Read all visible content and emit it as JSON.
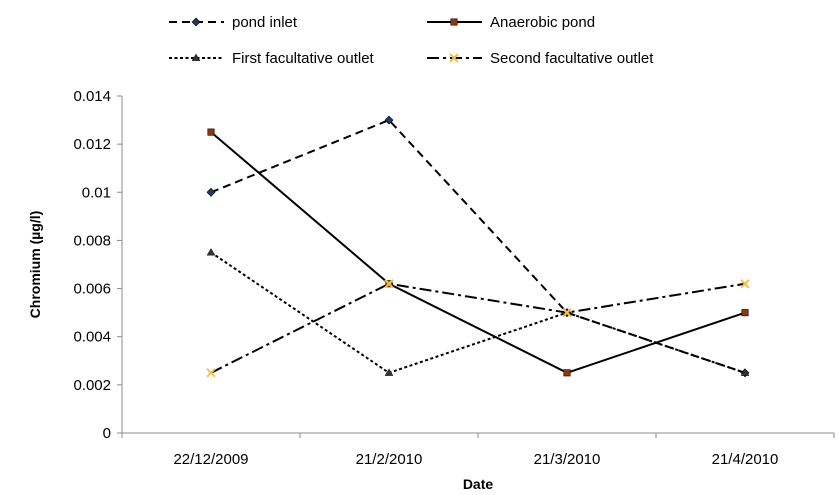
{
  "chart_data": {
    "type": "line",
    "categories": [
      "22/12/2009",
      "21/2/2010",
      "21/3/2010",
      "21/4/2010"
    ],
    "xlabel": "Date",
    "ylabel": "Chromium (µg/l)",
    "ylim": [
      0,
      0.014
    ],
    "y_ticks": [
      "0",
      "0.002",
      "0.004",
      "0.006",
      "0.008",
      "0.01",
      "0.012",
      "0.014"
    ],
    "grid": false,
    "legend_position": "top",
    "series": [
      {
        "name": "pond inlet",
        "values": [
          0.01,
          0.013,
          0.005,
          0.0025
        ],
        "color": "#000000",
        "line_style": "dashed",
        "marker": "diamond",
        "marker_color": "#1f3864"
      },
      {
        "name": "Anaerobic pond",
        "values": [
          0.0125,
          0.0062,
          0.0025,
          0.005
        ],
        "color": "#000000",
        "line_style": "solid",
        "marker": "square",
        "marker_color": "#8b3a0f"
      },
      {
        "name": "First facultative outlet",
        "values": [
          0.0075,
          0.0025,
          0.005,
          0.0025
        ],
        "color": "#000000",
        "line_style": "dotted",
        "marker": "triangle",
        "marker_color": "#333333"
      },
      {
        "name": "Second  facultative outlet",
        "values": [
          0.0025,
          0.0062,
          0.005,
          0.0062
        ],
        "color": "#000000",
        "line_style": "dashdot",
        "marker": "x",
        "marker_color": "#f2c14e"
      }
    ]
  }
}
